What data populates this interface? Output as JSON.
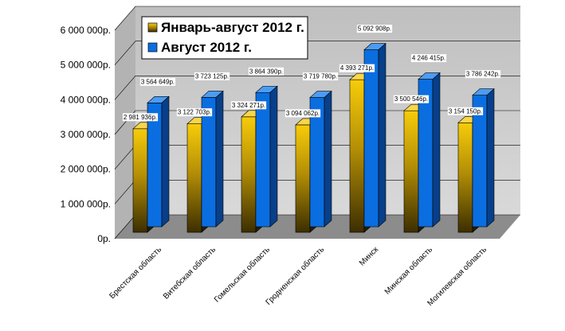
{
  "chart_data": {
    "type": "bar",
    "categories": [
      "Брестская область",
      "Витебская область",
      "Гомельская область",
      "Гродненская область",
      "Минск",
      "Минская область",
      "Могилевская область"
    ],
    "series": [
      {
        "name": "Январь-август 2012 г.",
        "values": [
          2981936,
          3122703,
          3324271,
          3094062,
          4393271,
          3500546,
          3154150
        ],
        "labels": [
          "2 981 936р.",
          "3 122 703р.",
          "3 324 271р.",
          "3 094 062р.",
          "4 393 271р.",
          "3 500 546р.",
          "3 154 150р."
        ],
        "color": "#f2c200"
      },
      {
        "name": "Август 2012 г.",
        "values": [
          3564649,
          3723125,
          3864390,
          3719780,
          5092908,
          4246415,
          3786242
        ],
        "labels": [
          "3 564 649р.",
          "3 723 125р.",
          "3 864 390р.",
          "3 719 780р.",
          "5 092 908р.",
          "4 246 415р.",
          "3 786 242р."
        ],
        "color": "#0a6ee0"
      }
    ],
    "ylim": [
      0,
      6000000
    ],
    "yticks": [
      0,
      1000000,
      2000000,
      3000000,
      4000000,
      5000000,
      6000000
    ],
    "ytick_labels": [
      "0р.",
      "1 000 000р.",
      "2 000 000р.",
      "3 000 000р.",
      "4 000 000р.",
      "5 000 000р.",
      "6 000 000р."
    ],
    "legend_position": "top-left",
    "grid": true,
    "title": "",
    "xlabel": "",
    "ylabel": ""
  }
}
